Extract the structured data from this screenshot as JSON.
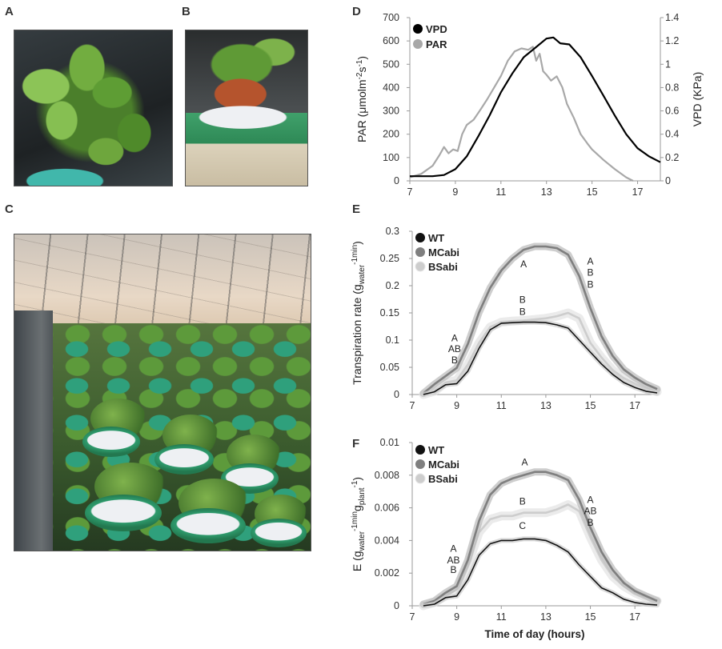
{
  "panel_labels": {
    "a": "A",
    "b": "B",
    "c": "C",
    "d": "D",
    "e": "E",
    "f": "F"
  },
  "chart_data": [
    {
      "panel": "D",
      "type": "line",
      "xlim": [
        7,
        18
      ],
      "x_ticks": [
        "7",
        "9",
        "11",
        "13",
        "15",
        "17"
      ],
      "xlabel": "",
      "ylabel_parts": [
        {
          "text": "PAR (μmolm",
          "style": "normal"
        },
        {
          "text": "-2",
          "style": "sup"
        },
        {
          "text": "s",
          "style": "normal"
        },
        {
          "text": "-1",
          "style": "sup"
        },
        {
          "text": ")",
          "style": "normal"
        }
      ],
      "ylim": [
        0,
        700
      ],
      "y_ticks": [
        "0",
        "100",
        "200",
        "300",
        "400",
        "500",
        "600",
        "700"
      ],
      "y2label": "VPD (KPa)",
      "y2lim": [
        0,
        1.4
      ],
      "y2_ticks": [
        "0",
        "0.2",
        "0.4",
        "0.6",
        "0.8",
        "1",
        "1.2",
        "1.4"
      ],
      "legend": "top-left",
      "grid": false,
      "series": [
        {
          "name": "VPD",
          "axis": "right",
          "color": "#000000",
          "points": [
            [
              7,
              0.04
            ],
            [
              8,
              0.04
            ],
            [
              8.5,
              0.05
            ],
            [
              9,
              0.1
            ],
            [
              9.5,
              0.21
            ],
            [
              10,
              0.38
            ],
            [
              10.5,
              0.56
            ],
            [
              11,
              0.76
            ],
            [
              11.5,
              0.92
            ],
            [
              12,
              1.06
            ],
            [
              12.5,
              1.14
            ],
            [
              13,
              1.22
            ],
            [
              13.3,
              1.23
            ],
            [
              13.6,
              1.18
            ],
            [
              14,
              1.17
            ],
            [
              14.5,
              1.06
            ],
            [
              15,
              0.9
            ],
            [
              15.5,
              0.73
            ],
            [
              16,
              0.56
            ],
            [
              16.5,
              0.4
            ],
            [
              17,
              0.28
            ],
            [
              17.5,
              0.21
            ],
            [
              18,
              0.16
            ]
          ]
        },
        {
          "name": "PAR",
          "axis": "left",
          "color": "#a8a8a8",
          "points": [
            [
              7,
              15
            ],
            [
              7.5,
              30
            ],
            [
              8,
              65
            ],
            [
              8.3,
              110
            ],
            [
              8.5,
              145
            ],
            [
              8.7,
              118
            ],
            [
              8.9,
              135
            ],
            [
              9.1,
              128
            ],
            [
              9.3,
              200
            ],
            [
              9.5,
              240
            ],
            [
              9.8,
              262
            ],
            [
              10.1,
              305
            ],
            [
              10.4,
              350
            ],
            [
              10.7,
              400
            ],
            [
              11,
              450
            ],
            [
              11.3,
              515
            ],
            [
              11.6,
              555
            ],
            [
              11.9,
              568
            ],
            [
              12.2,
              562
            ],
            [
              12.4,
              575
            ],
            [
              12.55,
              515
            ],
            [
              12.7,
              545
            ],
            [
              12.85,
              470
            ],
            [
              13,
              455
            ],
            [
              13.2,
              430
            ],
            [
              13.45,
              448
            ],
            [
              13.7,
              400
            ],
            [
              13.9,
              330
            ],
            [
              14.2,
              270
            ],
            [
              14.5,
              200
            ],
            [
              14.8,
              160
            ],
            [
              15,
              135
            ],
            [
              15.5,
              90
            ],
            [
              16,
              50
            ],
            [
              16.5,
              15
            ],
            [
              16.8,
              0
            ]
          ]
        }
      ]
    },
    {
      "panel": "E",
      "type": "line",
      "xlim": [
        7,
        18
      ],
      "x_ticks": [
        "7",
        "9",
        "11",
        "13",
        "15",
        "17"
      ],
      "xlabel": "",
      "ylabel_parts": [
        {
          "text": "Transpiration rate (g",
          "style": "normal"
        },
        {
          "text": "water",
          "style": "sub"
        },
        {
          "text": "-1min",
          "style": "sup"
        },
        {
          "text": ")",
          "style": "normal"
        }
      ],
      "ylim": [
        0,
        0.3
      ],
      "y_ticks": [
        "0",
        "0.05",
        "0.1",
        "0.15",
        "0.2",
        "0.25",
        "0.3"
      ],
      "legend": "top-left",
      "grid": false,
      "x": [
        7.5,
        8,
        8.5,
        9,
        9.5,
        10,
        10.5,
        11,
        11.5,
        12,
        12.5,
        13,
        13.5,
        14,
        14.5,
        15,
        15.5,
        16,
        16.5,
        17,
        17.5,
        18
      ],
      "series": [
        {
          "name": "WT",
          "color": "#111111",
          "values": [
            0,
            0.005,
            0.018,
            0.02,
            0.043,
            0.085,
            0.119,
            0.131,
            0.132,
            0.133,
            0.133,
            0.132,
            0.128,
            0.122,
            0.1,
            0.078,
            0.056,
            0.037,
            0.022,
            0.013,
            0.006,
            0.003
          ]
        },
        {
          "name": "MCabi",
          "color": "#7f7f7f",
          "values": [
            0.002,
            0.019,
            0.034,
            0.049,
            0.093,
            0.151,
            0.196,
            0.228,
            0.25,
            0.266,
            0.272,
            0.272,
            0.269,
            0.257,
            0.218,
            0.159,
            0.107,
            0.071,
            0.046,
            0.031,
            0.019,
            0.01
          ]
        },
        {
          "name": "BSabi",
          "color": "#cdcdcd",
          "values": [
            0,
            0.006,
            0.022,
            0.026,
            0.055,
            0.095,
            0.124,
            0.133,
            0.135,
            0.136,
            0.138,
            0.14,
            0.144,
            0.15,
            0.14,
            0.095,
            0.068,
            0.045,
            0.03,
            0.02,
            0.011,
            0.005
          ]
        }
      ],
      "annotations": [
        {
          "text": "A",
          "x": 12.0,
          "y": 0.24
        },
        {
          "text": "A",
          "x": 15.0,
          "y": 0.245
        },
        {
          "text": "B",
          "x": 15.0,
          "y": 0.224
        },
        {
          "text": "B",
          "x": 15.0,
          "y": 0.202
        },
        {
          "text": "B",
          "x": 11.95,
          "y": 0.174
        },
        {
          "text": "B",
          "x": 11.95,
          "y": 0.152
        },
        {
          "text": "A",
          "x": 8.9,
          "y": 0.104
        },
        {
          "text": "AB",
          "x": 8.9,
          "y": 0.084
        },
        {
          "text": "B",
          "x": 8.9,
          "y": 0.063
        }
      ]
    },
    {
      "panel": "F",
      "type": "line",
      "xlim": [
        7,
        18
      ],
      "x_ticks": [
        "7",
        "9",
        "11",
        "13",
        "15",
        "17"
      ],
      "xlabel": "Time of day (hours)",
      "ylabel_parts": [
        {
          "text": "E (g",
          "style": "normal"
        },
        {
          "text": "water",
          "style": "sub"
        },
        {
          "text": "-1min",
          "style": "sup"
        },
        {
          "text": "g",
          "style": "normal"
        },
        {
          "text": "plant",
          "style": "sub"
        },
        {
          "text": "-1",
          "style": "sup"
        },
        {
          "text": ")",
          "style": "normal"
        }
      ],
      "ylim": [
        0,
        0.01
      ],
      "y_ticks": [
        "0",
        "0.002",
        "0.004",
        "0.006",
        "0.008",
        "0.01"
      ],
      "legend": "top-left",
      "grid": false,
      "x": [
        7.5,
        8,
        8.5,
        9,
        9.5,
        10,
        10.5,
        11,
        11.5,
        12,
        12.5,
        13,
        13.5,
        14,
        14.5,
        15,
        15.5,
        16,
        16.5,
        17,
        17.5,
        18
      ],
      "series": [
        {
          "name": "WT",
          "color": "#111111",
          "values": [
            0,
            0.0001,
            0.0005,
            0.0006,
            0.0016,
            0.0031,
            0.0038,
            0.004,
            0.004,
            0.0041,
            0.0041,
            0.004,
            0.0037,
            0.0033,
            0.0025,
            0.0018,
            0.0011,
            0.0008,
            0.0004,
            0.0002,
            0.0001,
            5e-05
          ]
        },
        {
          "name": "MCabi",
          "color": "#7f7f7f",
          "values": [
            0.0001,
            0.0003,
            0.0008,
            0.0012,
            0.0028,
            0.0052,
            0.0068,
            0.0075,
            0.0078,
            0.008,
            0.0082,
            0.0082,
            0.008,
            0.0077,
            0.0065,
            0.0048,
            0.0033,
            0.0022,
            0.0014,
            0.0009,
            0.0006,
            0.0003
          ]
        },
        {
          "name": "BSabi",
          "color": "#cdcdcd",
          "values": [
            0,
            0.0002,
            0.0006,
            0.001,
            0.0025,
            0.0045,
            0.0053,
            0.0055,
            0.0055,
            0.0057,
            0.0057,
            0.0057,
            0.0059,
            0.0062,
            0.0058,
            0.0042,
            0.0028,
            0.0018,
            0.0012,
            0.0008,
            0.0005,
            0.0003
          ]
        }
      ],
      "annotations": [
        {
          "text": "A",
          "x": 12.05,
          "y": 0.0088
        },
        {
          "text": "B",
          "x": 11.95,
          "y": 0.0064
        },
        {
          "text": "C",
          "x": 11.95,
          "y": 0.0049
        },
        {
          "text": "A",
          "x": 15.0,
          "y": 0.0065
        },
        {
          "text": "AB",
          "x": 15.0,
          "y": 0.0058
        },
        {
          "text": "B",
          "x": 15.0,
          "y": 0.0051
        },
        {
          "text": "A",
          "x": 8.85,
          "y": 0.0035
        },
        {
          "text": "AB",
          "x": 8.85,
          "y": 0.0028
        },
        {
          "text": "B",
          "x": 8.85,
          "y": 0.0022
        }
      ]
    }
  ]
}
